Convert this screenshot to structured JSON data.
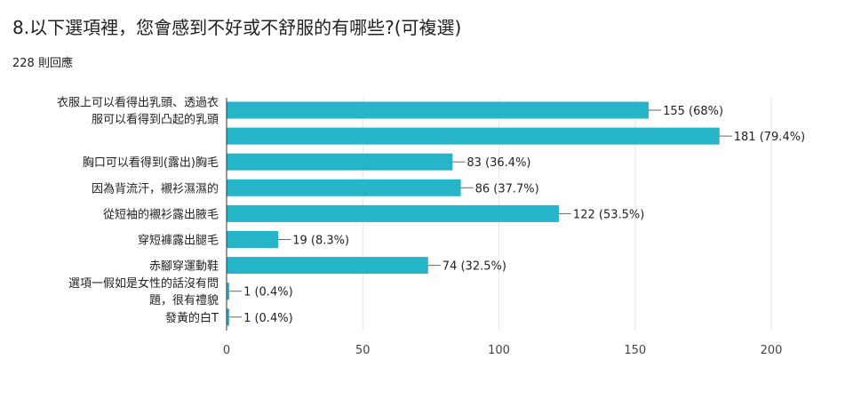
{
  "question": {
    "title": "8.以下選項裡，您會感到不好或不舒服的有哪些?(可複選)",
    "response_count": "228 則回應"
  },
  "colors": {
    "bar": "#26b4c8",
    "grid": "#e6e6e6",
    "axis": "#333333",
    "connector": "#666666"
  },
  "chart_data": {
    "type": "bar",
    "orientation": "horizontal",
    "categories": [
      [
        "衣服上可以看得出乳頭、透過衣",
        "服可以看得到凸起的乳頭"
      ],
      [],
      [
        "胸口可以看得到(露出)胸毛"
      ],
      [
        "因為背流汗，襯衫濕濕的"
      ],
      [
        "從短袖的襯衫露出腋毛"
      ],
      [
        "穿短褲露出腿毛"
      ],
      [
        "赤腳穿運動鞋"
      ],
      [
        "選項一假如是女性的話沒有問",
        "題，很有禮貌"
      ],
      [
        "發黃的白T"
      ]
    ],
    "values": [
      155,
      181,
      83,
      86,
      122,
      19,
      74,
      1,
      1
    ],
    "data_labels": [
      "155 (68%)",
      "181 (79.4%)",
      "83 (36.4%)",
      "86 (37.7%)",
      "122 (53.5%)",
      "19 (8.3%)",
      "74 (32.5%)",
      "1 (0.4%)",
      "1 (0.4%)"
    ],
    "xlim": [
      0,
      200
    ],
    "xticks": [
      "0",
      "50",
      "100",
      "150",
      "200"
    ],
    "grid": true,
    "title": "",
    "xlabel": "",
    "ylabel": ""
  }
}
